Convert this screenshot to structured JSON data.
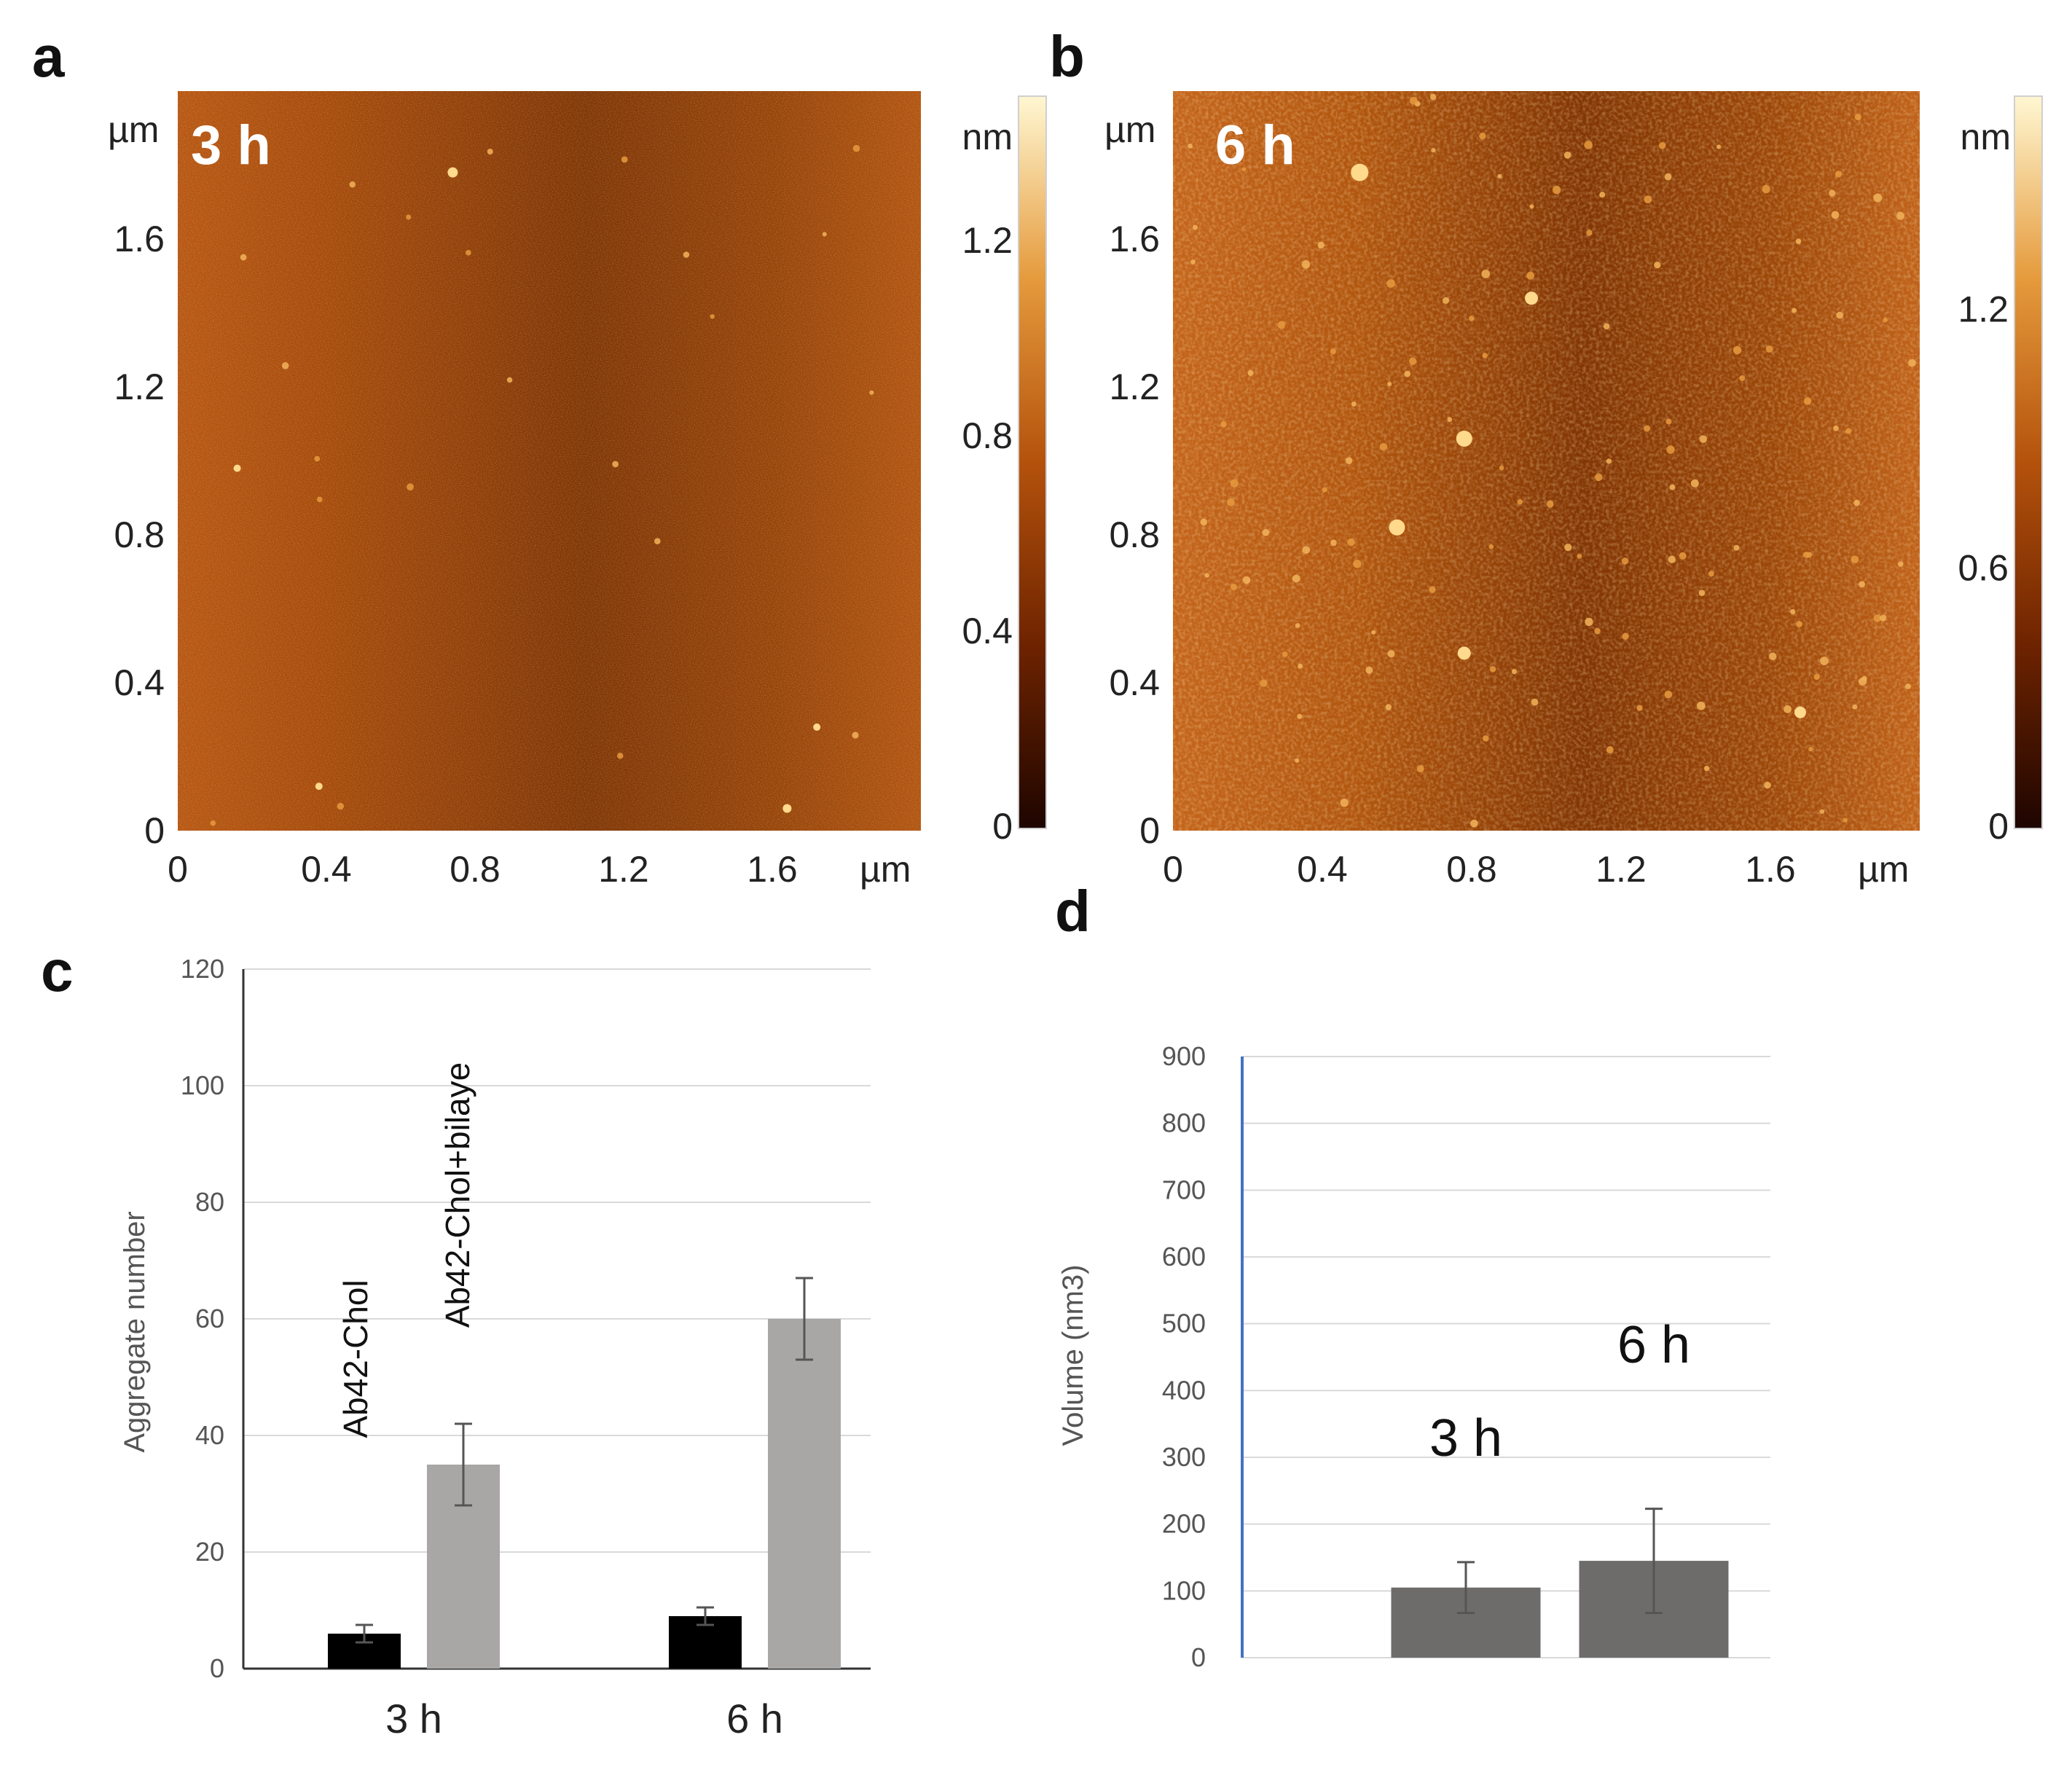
{
  "chart_data": [
    {
      "panel": "a",
      "type": "heatmap",
      "overlay_label": "3 h",
      "x_ticks": [
        "0",
        "0.4",
        "0.8",
        "1.2",
        "1.6"
      ],
      "x_unit": "µm",
      "y_ticks": [
        "0",
        "0.4",
        "0.8",
        "1.2",
        "1.6"
      ],
      "y_unit": "µm",
      "colorbar_unit": "nm",
      "colorbar_ticks": [
        "0",
        "0.4",
        "0.8",
        "1.2"
      ],
      "colorbar_range": [
        0,
        1.5
      ],
      "extent_um": [
        0,
        2
      ],
      "colors": [
        "#1e0500",
        "#6e2300",
        "#b4520c",
        "#e59a3c",
        "#fff7d2"
      ]
    },
    {
      "panel": "b",
      "type": "heatmap",
      "overlay_label": "6 h",
      "x_ticks": [
        "0",
        "0.4",
        "0.8",
        "1.2",
        "1.6"
      ],
      "x_unit": "µm",
      "y_ticks": [
        "0",
        "0.4",
        "0.8",
        "1.2",
        "1.6"
      ],
      "y_unit": "µm",
      "colorbar_unit": "nm",
      "colorbar_ticks": [
        "0",
        "0.6",
        "1.2"
      ],
      "colorbar_range": [
        0,
        1.7
      ],
      "extent_um": [
        0,
        2
      ],
      "colors": [
        "#1e0500",
        "#6e2300",
        "#b4520c",
        "#e59a3c",
        "#fff7d2"
      ]
    },
    {
      "panel": "c",
      "type": "bar",
      "categories": [
        "3 h",
        "6 h"
      ],
      "series": [
        {
          "name": "Ab42-Chol",
          "values": [
            6,
            9
          ],
          "errors": [
            1.5,
            1.5
          ],
          "color": "#000000"
        },
        {
          "name": "Ab42-Chol+bilaye",
          "values": [
            35,
            60
          ],
          "errors": [
            7,
            7
          ],
          "color": "#a9a6a6"
        }
      ],
      "ylabel": "Aggregate number",
      "ylim": [
        0,
        120
      ],
      "yticks": [
        "0",
        "20",
        "40",
        "60",
        "80",
        "100",
        "120"
      ],
      "grid": true
    },
    {
      "panel": "d",
      "type": "bar",
      "categories": [
        "3 h",
        "6 h"
      ],
      "values": [
        105,
        145
      ],
      "errors": [
        38,
        78
      ],
      "color": "#6e6b6b",
      "ylabel": "Volume (nm3)",
      "ylim": [
        0,
        900
      ],
      "yticks": [
        "0",
        "100",
        "200",
        "300",
        "400",
        "500",
        "600",
        "700",
        "800",
        "900"
      ],
      "grid": true,
      "axis_color": "#4472c4"
    }
  ],
  "panel_letters": [
    "a",
    "b",
    "c",
    "d"
  ]
}
